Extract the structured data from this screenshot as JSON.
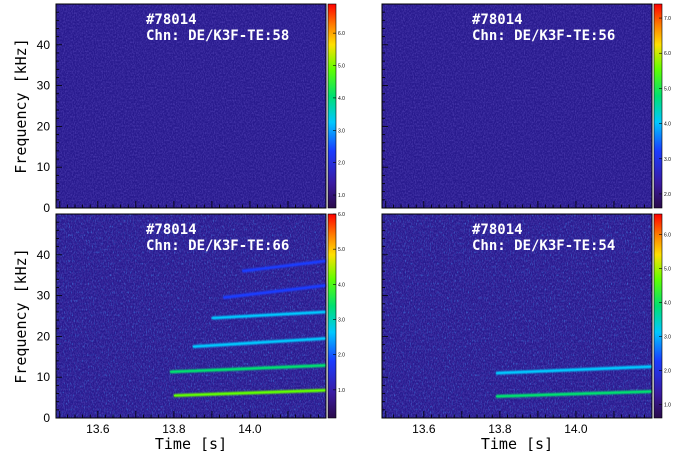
{
  "chart_data": [
    {
      "type": "heatmap",
      "shot": "#78014",
      "channel": "Chn: DE/K3F-TE:58",
      "ylabel": "Frequency [kHz]",
      "xlabel": "",
      "xlim": [
        13.49,
        14.2
      ],
      "ylim": [
        0,
        50
      ],
      "yticks": [
        "0",
        "10",
        "20",
        "30",
        "40"
      ],
      "xticks": [],
      "colorbar": {
        "range": [
          0.6,
          6.9
        ],
        "ticks": [
          "1.0",
          "2.0",
          "3.0",
          "4.0",
          "5.0",
          "6.0"
        ]
      },
      "features": []
    },
    {
      "type": "heatmap",
      "shot": "#78014",
      "channel": "Chn: DE/K3F-TE:56",
      "ylabel": "",
      "xlabel": "",
      "xlim": [
        13.49,
        14.2
      ],
      "ylim": [
        0,
        50
      ],
      "yticks": [],
      "xticks": [],
      "colorbar": {
        "range": [
          1.6,
          7.4
        ],
        "ticks": [
          "2.0",
          "3.0",
          "4.0",
          "5.0",
          "6.0",
          "7.0"
        ]
      },
      "features": []
    },
    {
      "type": "heatmap",
      "shot": "#78014",
      "channel": "Chn: DE/K3F-TE:66",
      "ylabel": "Frequency [kHz]",
      "xlabel": "Time [s]",
      "xlim": [
        13.49,
        14.2
      ],
      "ylim": [
        0,
        50
      ],
      "yticks": [
        "0",
        "10",
        "20",
        "30",
        "40"
      ],
      "xticks": [
        "13.6",
        "13.8",
        "14.0"
      ],
      "colorbar": {
        "range": [
          0.2,
          6.0
        ],
        "ticks": [
          "1.0",
          "2.0",
          "3.0",
          "4.0",
          "5.0",
          "6.0"
        ]
      },
      "features": [
        {
          "t": [
            13.8,
            14.2
          ],
          "f": [
            5.5,
            6.8
          ],
          "level": 0.58
        },
        {
          "t": [
            13.79,
            14.2
          ],
          "f": [
            11.3,
            12.9
          ],
          "level": 0.48
        },
        {
          "t": [
            13.85,
            14.2
          ],
          "f": [
            17.5,
            19.5
          ],
          "level": 0.34
        },
        {
          "t": [
            13.9,
            14.2
          ],
          "f": [
            24.5,
            26.0
          ],
          "level": 0.29
        },
        {
          "t": [
            13.93,
            14.2
          ],
          "f": [
            29.5,
            32.5
          ],
          "level": 0.27
        },
        {
          "t": [
            13.98,
            14.2
          ],
          "f": [
            36.0,
            38.5
          ],
          "level": 0.24
        }
      ]
    },
    {
      "type": "heatmap",
      "shot": "#78014",
      "channel": "Chn: DE/K3F-TE:54",
      "ylabel": "",
      "xlabel": "Time [s]",
      "xlim": [
        13.49,
        14.2
      ],
      "ylim": [
        0,
        50
      ],
      "yticks": [],
      "xticks": [
        "13.6",
        "13.8",
        "14.0"
      ],
      "colorbar": {
        "range": [
          0.6,
          6.6
        ],
        "ticks": [
          "1.0",
          "2.0",
          "3.0",
          "4.0",
          "5.0",
          "6.0"
        ]
      },
      "features": [
        {
          "t": [
            13.79,
            14.2
          ],
          "f": [
            5.3,
            6.5
          ],
          "level": 0.52
        },
        {
          "t": [
            13.79,
            14.2
          ],
          "f": [
            11.0,
            12.6
          ],
          "level": 0.4
        }
      ]
    }
  ]
}
